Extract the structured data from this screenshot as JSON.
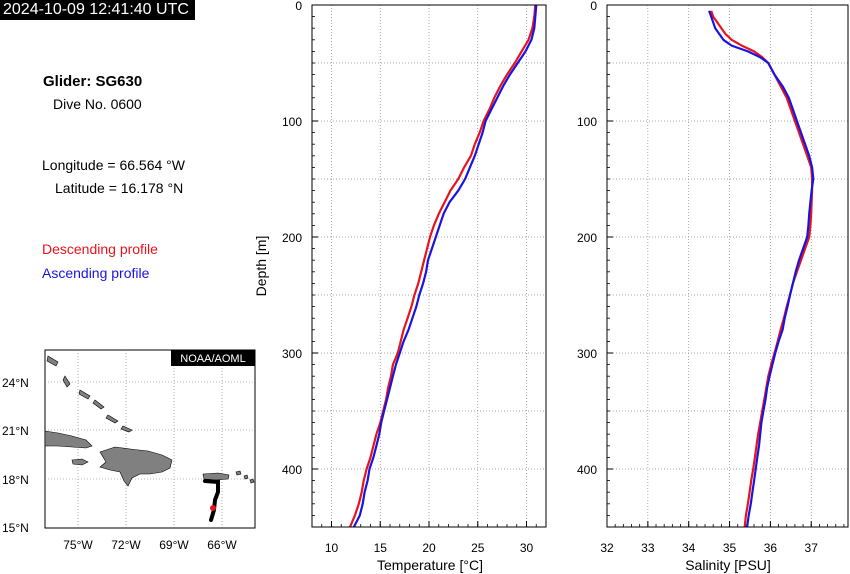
{
  "header": {
    "timestamp": "2024-10-09 12:41:40 UTC"
  },
  "info": {
    "glider": "Glider: SG630",
    "dive": "Dive No. 0600",
    "longitude": "Longitude = 66.564 °W",
    "latitude": "Latitude = 16.178 °N"
  },
  "legend": {
    "descending": "Descending profile",
    "ascending": "Ascending profile"
  },
  "colors": {
    "descending": "#e8141b",
    "ascending": "#1a14e0",
    "land": "#808080",
    "track": "#000000",
    "position": "#e8141b"
  },
  "map": {
    "credit": "NOAA/AOML",
    "lat_labels": [
      "24°N",
      "21°N",
      "18°N",
      "15°N"
    ],
    "lon_labels": [
      "75°W",
      "72°W",
      "69°W",
      "66°W"
    ]
  },
  "chart_data": [
    {
      "type": "line",
      "xlabel": "Temperature [°C]",
      "ylabel": "Depth [m]",
      "xlim": [
        8,
        32
      ],
      "ylim": [
        450,
        0
      ],
      "xticks": [
        10,
        15,
        20,
        25,
        30
      ],
      "yticks": [
        0,
        100,
        200,
        300,
        400
      ],
      "grid": true,
      "series": [
        {
          "color_key": "descending",
          "points": [
            [
              30.9,
              0
            ],
            [
              30.8,
              10
            ],
            [
              30.6,
              20
            ],
            [
              30.2,
              30
            ],
            [
              29.5,
              40
            ],
            [
              28.8,
              50
            ],
            [
              28,
              60
            ],
            [
              27.3,
              70
            ],
            [
              26.7,
              80
            ],
            [
              26.2,
              90
            ],
            [
              25.6,
              100
            ],
            [
              25.2,
              110
            ],
            [
              24.7,
              120
            ],
            [
              24.3,
              130
            ],
            [
              23.6,
              140
            ],
            [
              23,
              150
            ],
            [
              22.2,
              160
            ],
            [
              21.6,
              170
            ],
            [
              21,
              180
            ],
            [
              20.5,
              190
            ],
            [
              20.1,
              200
            ],
            [
              19.8,
              210
            ],
            [
              19.5,
              220
            ],
            [
              19.2,
              230
            ],
            [
              18.9,
              240
            ],
            [
              18.5,
              250
            ],
            [
              18.2,
              260
            ],
            [
              17.8,
              270
            ],
            [
              17.4,
              280
            ],
            [
              17.1,
              290
            ],
            [
              16.8,
              300
            ],
            [
              16.3,
              310
            ],
            [
              16.1,
              320
            ],
            [
              15.8,
              330
            ],
            [
              15.6,
              340
            ],
            [
              15.3,
              350
            ],
            [
              15,
              360
            ],
            [
              14.6,
              370
            ],
            [
              14.3,
              380
            ],
            [
              14,
              390
            ],
            [
              13.6,
              400
            ],
            [
              13.3,
              410
            ],
            [
              13.1,
              420
            ],
            [
              12.8,
              430
            ],
            [
              12.4,
              440
            ],
            [
              11.9,
              450
            ]
          ]
        },
        {
          "color_key": "ascending",
          "points": [
            [
              31,
              0
            ],
            [
              30.9,
              10
            ],
            [
              30.8,
              20
            ],
            [
              30.5,
              30
            ],
            [
              29.9,
              40
            ],
            [
              29.1,
              50
            ],
            [
              28.3,
              60
            ],
            [
              27.6,
              70
            ],
            [
              27,
              80
            ],
            [
              26.4,
              90
            ],
            [
              25.8,
              100
            ],
            [
              25.5,
              110
            ],
            [
              25.1,
              120
            ],
            [
              24.7,
              130
            ],
            [
              24.2,
              140
            ],
            [
              23.7,
              150
            ],
            [
              23,
              160
            ],
            [
              22.1,
              170
            ],
            [
              21.5,
              180
            ],
            [
              21.1,
              190
            ],
            [
              20.7,
              200
            ],
            [
              20.3,
              210
            ],
            [
              19.9,
              220
            ],
            [
              19.7,
              230
            ],
            [
              19.4,
              240
            ],
            [
              19,
              250
            ],
            [
              18.7,
              260
            ],
            [
              18.3,
              270
            ],
            [
              17.9,
              280
            ],
            [
              17.4,
              290
            ],
            [
              17,
              300
            ],
            [
              16.6,
              310
            ],
            [
              16.3,
              320
            ],
            [
              16,
              330
            ],
            [
              15.7,
              340
            ],
            [
              15.4,
              350
            ],
            [
              15.1,
              360
            ],
            [
              14.9,
              370
            ],
            [
              14.6,
              380
            ],
            [
              14.3,
              390
            ],
            [
              13.9,
              400
            ],
            [
              13.7,
              410
            ],
            [
              13.4,
              420
            ],
            [
              13.2,
              430
            ],
            [
              12.9,
              440
            ],
            [
              12.3,
              450
            ]
          ]
        }
      ]
    },
    {
      "type": "line",
      "xlabel": "Salinity [PSU]",
      "ylabel": "",
      "xlim": [
        32,
        37.9
      ],
      "ylim": [
        450,
        0
      ],
      "xticks": [
        32,
        33,
        34,
        35,
        36,
        37
      ],
      "yticks": [
        0,
        100,
        200,
        300,
        400
      ],
      "grid": true,
      "series": [
        {
          "color_key": "descending",
          "points": [
            [
              34.55,
              5
            ],
            [
              34.6,
              10
            ],
            [
              34.7,
              15
            ],
            [
              34.8,
              20
            ],
            [
              34.9,
              25
            ],
            [
              35.05,
              30
            ],
            [
              35.3,
              35
            ],
            [
              35.6,
              40
            ],
            [
              35.8,
              45
            ],
            [
              35.95,
              50
            ],
            [
              36.1,
              60
            ],
            [
              36.25,
              70
            ],
            [
              36.4,
              80
            ],
            [
              36.5,
              90
            ],
            [
              36.6,
              100
            ],
            [
              36.7,
              110
            ],
            [
              36.8,
              120
            ],
            [
              36.9,
              130
            ],
            [
              37,
              140
            ],
            [
              37.02,
              150
            ],
            [
              37.02,
              160
            ],
            [
              37.01,
              170
            ],
            [
              37,
              180
            ],
            [
              36.98,
              190
            ],
            [
              36.95,
              200
            ],
            [
              36.85,
              210
            ],
            [
              36.75,
              220
            ],
            [
              36.65,
              230
            ],
            [
              36.55,
              240
            ],
            [
              36.48,
              250
            ],
            [
              36.4,
              260
            ],
            [
              36.33,
              270
            ],
            [
              36.25,
              280
            ],
            [
              36.18,
              290
            ],
            [
              36.1,
              300
            ],
            [
              36.02,
              310
            ],
            [
              35.95,
              320
            ],
            [
              35.9,
              330
            ],
            [
              35.85,
              340
            ],
            [
              35.8,
              350
            ],
            [
              35.75,
              360
            ],
            [
              35.7,
              370
            ],
            [
              35.66,
              380
            ],
            [
              35.62,
              390
            ],
            [
              35.58,
              400
            ],
            [
              35.53,
              410
            ],
            [
              35.49,
              420
            ],
            [
              35.45,
              430
            ],
            [
              35.4,
              440
            ],
            [
              35.37,
              450
            ]
          ]
        },
        {
          "color_key": "ascending",
          "points": [
            [
              34.5,
              5
            ],
            [
              34.55,
              10
            ],
            [
              34.6,
              15
            ],
            [
              34.65,
              20
            ],
            [
              34.75,
              25
            ],
            [
              34.85,
              30
            ],
            [
              35.05,
              35
            ],
            [
              35.45,
              40
            ],
            [
              35.75,
              45
            ],
            [
              35.95,
              50
            ],
            [
              36.1,
              60
            ],
            [
              36.3,
              70
            ],
            [
              36.45,
              80
            ],
            [
              36.55,
              90
            ],
            [
              36.65,
              100
            ],
            [
              36.75,
              110
            ],
            [
              36.85,
              120
            ],
            [
              36.95,
              130
            ],
            [
              37.02,
              140
            ],
            [
              37.05,
              150
            ],
            [
              37.01,
              160
            ],
            [
              36.98,
              170
            ],
            [
              36.95,
              180
            ],
            [
              36.93,
              190
            ],
            [
              36.9,
              200
            ],
            [
              36.8,
              210
            ],
            [
              36.7,
              220
            ],
            [
              36.62,
              230
            ],
            [
              36.55,
              240
            ],
            [
              36.48,
              250
            ],
            [
              36.42,
              260
            ],
            [
              36.35,
              270
            ],
            [
              36.3,
              280
            ],
            [
              36.2,
              290
            ],
            [
              36.12,
              300
            ],
            [
              36.05,
              310
            ],
            [
              35.98,
              320
            ],
            [
              35.92,
              330
            ],
            [
              35.88,
              340
            ],
            [
              35.83,
              350
            ],
            [
              35.78,
              360
            ],
            [
              35.75,
              370
            ],
            [
              35.72,
              380
            ],
            [
              35.68,
              390
            ],
            [
              35.64,
              400
            ],
            [
              35.6,
              410
            ],
            [
              35.56,
              420
            ],
            [
              35.52,
              430
            ],
            [
              35.47,
              440
            ],
            [
              35.43,
              450
            ]
          ]
        }
      ]
    }
  ]
}
